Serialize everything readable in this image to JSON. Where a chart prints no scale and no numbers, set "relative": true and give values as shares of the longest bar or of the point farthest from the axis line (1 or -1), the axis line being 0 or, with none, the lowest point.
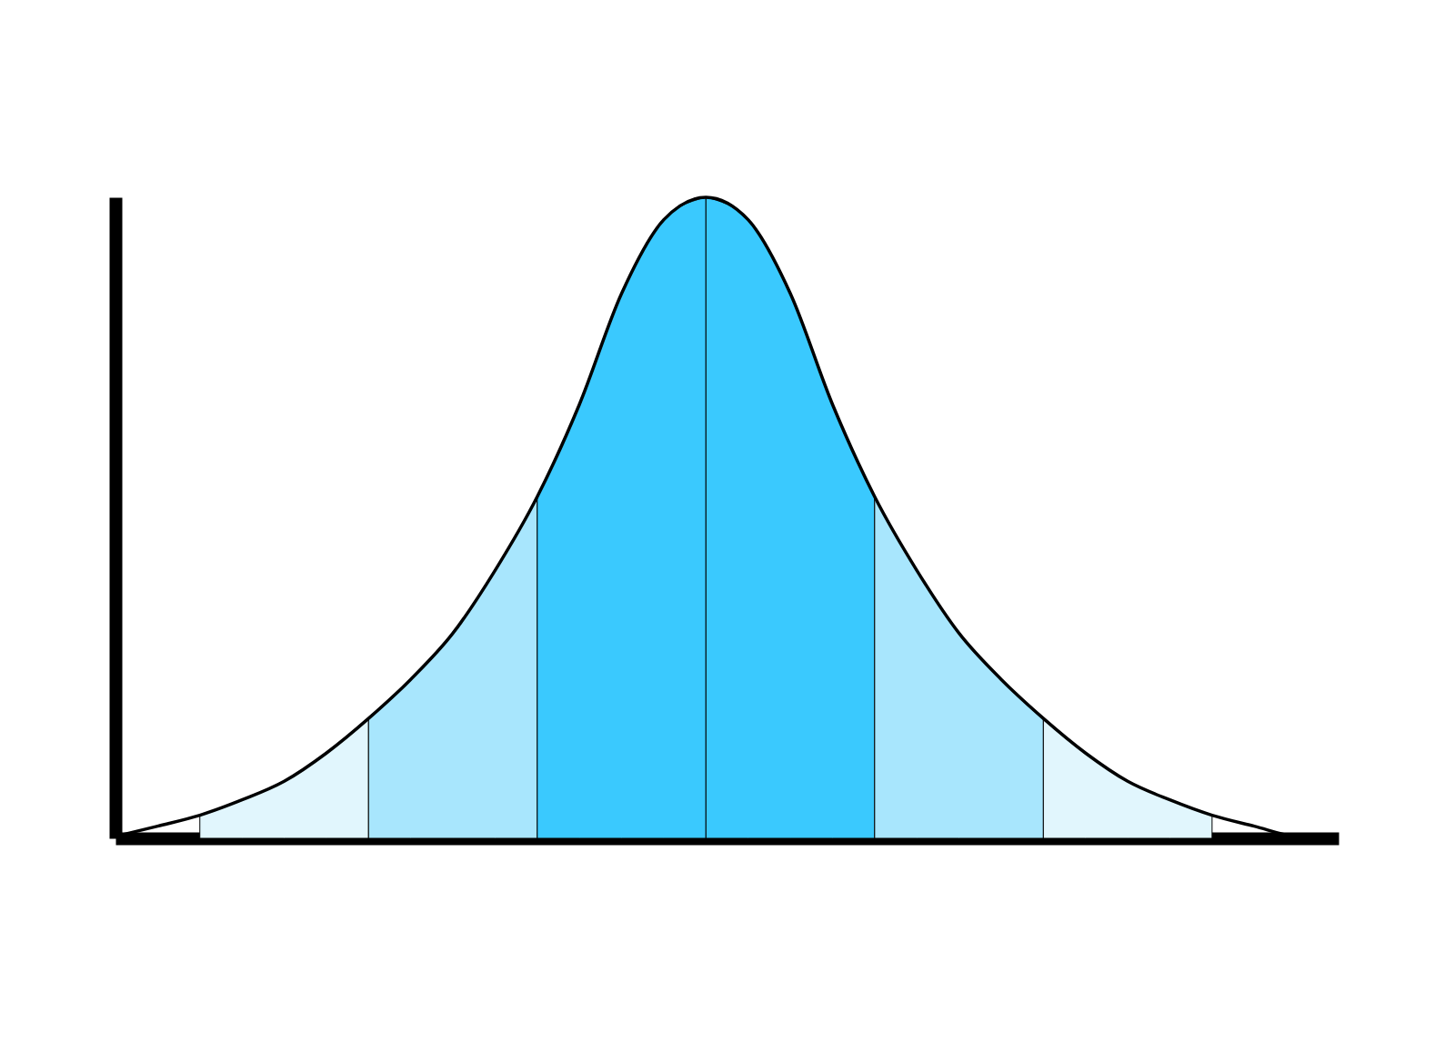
{
  "chart_data": {
    "type": "area",
    "relative": true,
    "grid": false,
    "categories": [
      null,
      null,
      null,
      null,
      null,
      null,
      null,
      null,
      null,
      null,
      null,
      null,
      null,
      null,
      null,
      null,
      null,
      null,
      null,
      null,
      null,
      null,
      null,
      null,
      null,
      null,
      null,
      null,
      null,
      null
    ],
    "series": [
      {
        "color": "#e1f6fd",
        "values": [
          null,
          null,
          0.036,
          0.06,
          0.089,
          0.133,
          0.187,
          null,
          null,
          null,
          null,
          null,
          null,
          null,
          null,
          null,
          null,
          null,
          null,
          null,
          null,
          null,
          null,
          null,
          null,
          null,
          null,
          null,
          null,
          null
        ]
      },
      {
        "color": "#a8e6fd",
        "values": [
          null,
          null,
          null,
          null,
          null,
          null,
          0.187,
          0.248,
          0.32,
          0.418,
          0.533,
          null,
          null,
          null,
          null,
          null,
          null,
          null,
          null,
          null,
          null,
          null,
          null,
          null,
          null,
          null,
          null,
          null,
          null,
          null
        ]
      },
      {
        "color": "#3ac9fe",
        "values": [
          null,
          null,
          null,
          null,
          null,
          null,
          null,
          null,
          null,
          null,
          0.533,
          0.677,
          0.85,
          0.965,
          1,
          null,
          null,
          null,
          null,
          null,
          null,
          null,
          null,
          null,
          null,
          null,
          null,
          null,
          null,
          null
        ]
      },
      {
        "color": "#3ac9fe",
        "values": [
          null,
          null,
          null,
          null,
          null,
          null,
          null,
          null,
          null,
          null,
          null,
          null,
          null,
          null,
          1,
          0.965,
          0.85,
          0.677,
          0.533,
          null,
          null,
          null,
          null,
          null,
          null,
          null,
          null,
          null,
          null,
          null
        ]
      },
      {
        "color": "#a8e6fd",
        "values": [
          null,
          null,
          null,
          null,
          null,
          null,
          null,
          null,
          null,
          null,
          null,
          null,
          null,
          null,
          null,
          null,
          null,
          null,
          0.533,
          0.418,
          0.32,
          0.248,
          0.187,
          null,
          null,
          null,
          null,
          null,
          null,
          null
        ]
      },
      {
        "color": "#e1f6fd",
        "values": [
          null,
          null,
          null,
          null,
          null,
          null,
          null,
          null,
          null,
          null,
          null,
          null,
          null,
          null,
          null,
          null,
          null,
          null,
          null,
          null,
          null,
          null,
          0.187,
          0.133,
          0.089,
          0.06,
          0.036,
          null,
          null,
          null
        ]
      },
      {
        "type": "line",
        "color": "#000000",
        "values": [
          0.003,
          0.019,
          0.036,
          0.06,
          0.089,
          0.133,
          0.187,
          0.248,
          0.32,
          0.418,
          0.533,
          0.677,
          0.85,
          0.965,
          1,
          0.965,
          0.85,
          0.677,
          0.533,
          0.418,
          0.32,
          0.248,
          0.187,
          0.133,
          0.089,
          0.06,
          0.036,
          0.019,
          0.003,
          0.001
        ]
      }
    ]
  }
}
